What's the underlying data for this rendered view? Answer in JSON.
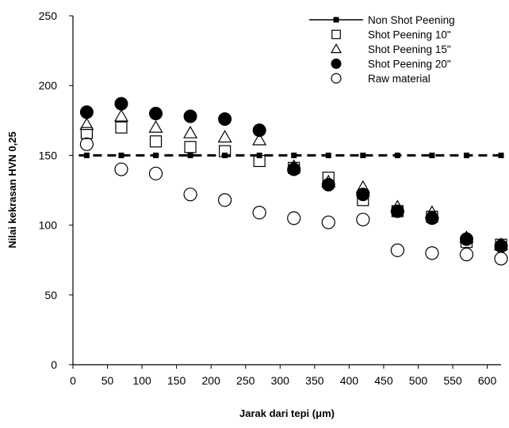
{
  "chart_data": {
    "type": "scatter",
    "title": "",
    "xlabel": "Jarak dari tepi (μm)",
    "ylabel": "Nilai kekrasan HVN 0,25",
    "xlim": [
      0,
      620
    ],
    "ylim": [
      0,
      250
    ],
    "xticks": [
      "0",
      "50",
      "100",
      "150",
      "200",
      "250",
      "300",
      "350",
      "400",
      "450",
      "500",
      "550",
      "600"
    ],
    "xtick_values": [
      0,
      50,
      100,
      150,
      200,
      250,
      300,
      350,
      400,
      450,
      500,
      550,
      600
    ],
    "yticks": [
      "0",
      "50",
      "100",
      "150",
      "200",
      "250"
    ],
    "ytick_values": [
      0,
      50,
      100,
      150,
      200,
      250
    ],
    "grid": false,
    "legend_position": "top-right",
    "series": [
      {
        "name": "Non Shot Peening",
        "marker": "dashed-line-square",
        "color": "#000000",
        "x": [
          20,
          70,
          120,
          170,
          220,
          270,
          320,
          370,
          420,
          470,
          520,
          570,
          620
        ],
        "y": [
          150,
          150,
          150,
          150,
          150,
          150,
          150,
          150,
          150,
          150,
          150,
          150,
          150
        ]
      },
      {
        "name": "Shot Peening 10\"",
        "marker": "open-square",
        "color": "#000000",
        "x": [
          20,
          70,
          120,
          170,
          220,
          270,
          320,
          370,
          420,
          470,
          520,
          570,
          620
        ],
        "y": [
          166,
          170,
          160,
          156,
          153,
          146,
          141,
          134,
          118,
          110,
          106,
          88,
          86
        ]
      },
      {
        "name": "Shot Peening 15\"",
        "marker": "open-triangle",
        "color": "#000000",
        "x": [
          20,
          70,
          120,
          170,
          220,
          270,
          320,
          370,
          420,
          470,
          520,
          570,
          620
        ],
        "y": [
          172,
          178,
          170,
          166,
          163,
          161,
          142,
          131,
          127,
          113,
          109,
          91,
          86
        ]
      },
      {
        "name": "Shot Peening 20\"",
        "marker": "filled-circle",
        "color": "#000000",
        "x": [
          20,
          70,
          120,
          170,
          220,
          270,
          320,
          370,
          420,
          470,
          520,
          570,
          620
        ],
        "y": [
          181,
          187,
          180,
          178,
          176,
          168,
          140,
          129,
          122,
          110,
          105,
          90,
          85
        ]
      },
      {
        "name": "Raw material",
        "marker": "open-circle",
        "color": "#000000",
        "x": [
          20,
          70,
          120,
          170,
          220,
          270,
          320,
          370,
          420,
          470,
          520,
          570,
          620
        ],
        "y": [
          158,
          140,
          137,
          122,
          118,
          109,
          105,
          102,
          104,
          82,
          80,
          79,
          76
        ]
      }
    ]
  }
}
